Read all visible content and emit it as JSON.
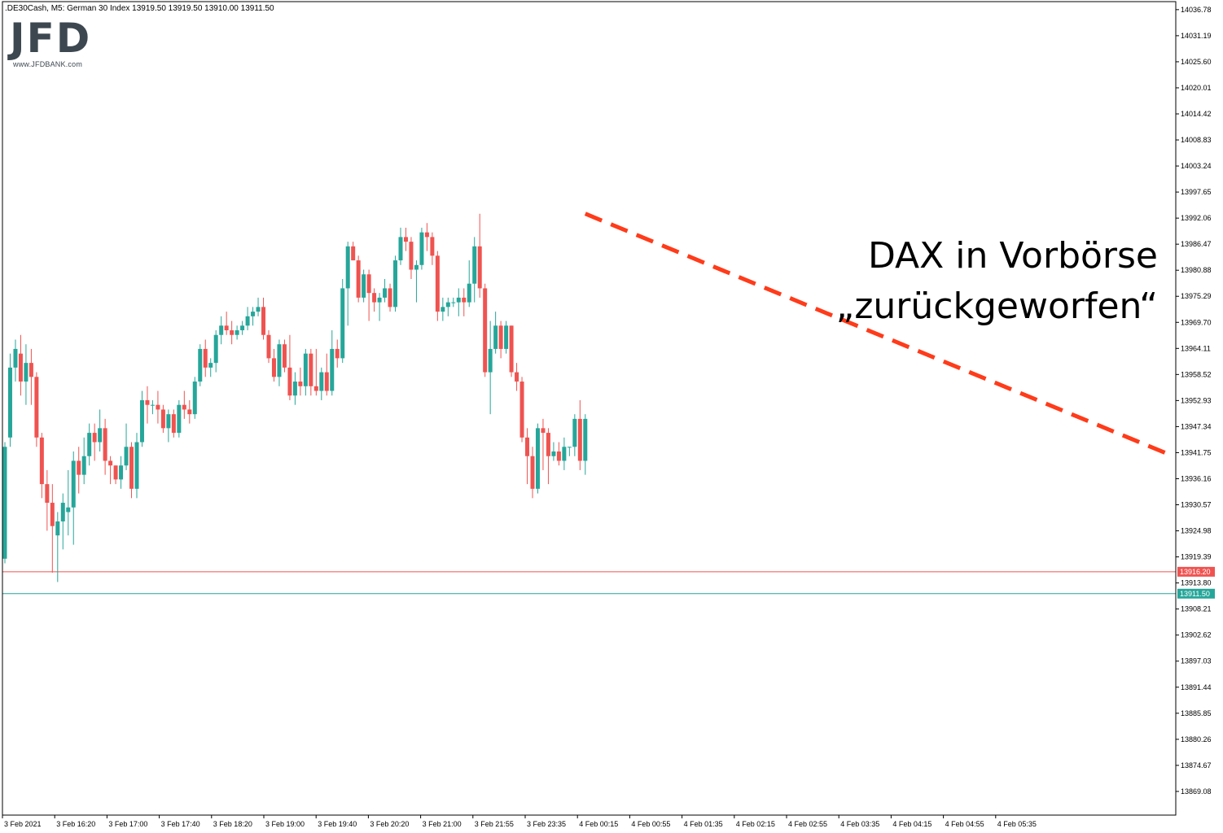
{
  "header": {
    "text": ".DE30Cash, M5:  German 30 Index  13919.50 13919.50 13910.00 13911.50"
  },
  "logo": {
    "mark": "JFD",
    "url": "www.JFDBANK.com"
  },
  "annotation": {
    "line1": "DAX  in Vorbörse",
    "line2": "„zurückgeworfen“"
  },
  "colors": {
    "bull": "#26a69a",
    "bear": "#ef5350",
    "trendline": "#ff3b1a",
    "bid_line": "#26a69a",
    "ask_line": "#ef5350"
  },
  "chart_data": {
    "type": "candlestick",
    "symbol": ".DE30Cash",
    "timeframe": "M5",
    "instrument": "German 30 Index",
    "ohlc_header": {
      "open": 13919.5,
      "high": 13919.5,
      "low": 13910.0,
      "close": 13911.5
    },
    "ylim": [
      13864.0,
      14038.5
    ],
    "y_ticks": [
      "14036.78",
      "14031.19",
      "14025.60",
      "14020.01",
      "14014.42",
      "14008.83",
      "14003.24",
      "13997.65",
      "13992.06",
      "13986.47",
      "13980.88",
      "13975.29",
      "13969.70",
      "13964.11",
      "13958.52",
      "13952.93",
      "13947.34",
      "13941.75",
      "13936.16",
      "13930.57",
      "13924.98",
      "13919.39",
      "13913.80",
      "13908.21",
      "13902.62",
      "13897.03",
      "13891.44",
      "13885.85",
      "13880.26",
      "13874.67",
      "13869.08"
    ],
    "x_ticks": [
      "3 Feb 2021",
      "3 Feb 16:20",
      "3 Feb 17:00",
      "3 Feb 17:40",
      "3 Feb 18:20",
      "3 Feb 19:00",
      "3 Feb 19:40",
      "3 Feb 20:20",
      "3 Feb 21:00",
      "3 Feb 21:55",
      "3 Feb 23:35",
      "4 Feb 00:15",
      "4 Feb 00:55",
      "4 Feb 01:35",
      "4 Feb 02:15",
      "4 Feb 02:55",
      "4 Feb 03:35",
      "4 Feb 04:15",
      "4 Feb 04:55",
      "4 Feb 05:35"
    ],
    "price_lines": [
      {
        "label": "13916.20",
        "value": 13916.2,
        "kind": "ask"
      },
      {
        "label": "13911.50",
        "value": 13911.5,
        "kind": "bid"
      }
    ],
    "trendline": {
      "from_bar": 110,
      "from_price": 13993.0,
      "to_bar": 228,
      "to_price": 13941.0,
      "style": "dashed"
    },
    "candles": [
      {
        "o": 13919,
        "h": 13944,
        "l": 13918,
        "c": 13943
      },
      {
        "o": 13945,
        "h": 13963,
        "l": 13943,
        "c": 13960
      },
      {
        "o": 13960,
        "h": 13966,
        "l": 13957,
        "c": 13964
      },
      {
        "o": 13963,
        "h": 13967,
        "l": 13954,
        "c": 13957
      },
      {
        "o": 13957,
        "h": 13965,
        "l": 13952,
        "c": 13961
      },
      {
        "o": 13961,
        "h": 13964,
        "l": 13952,
        "c": 13958
      },
      {
        "o": 13958,
        "h": 13959,
        "l": 13943,
        "c": 13945
      },
      {
        "o": 13945,
        "h": 13946,
        "l": 13932,
        "c": 13935
      },
      {
        "o": 13935,
        "h": 13938,
        "l": 13925,
        "c": 13931
      },
      {
        "o": 13931,
        "h": 13935,
        "l": 13916,
        "c": 13926
      },
      {
        "o": 13924,
        "h": 13929,
        "l": 13914,
        "c": 13927
      },
      {
        "o": 13927,
        "h": 13933,
        "l": 13921,
        "c": 13931
      },
      {
        "o": 13929,
        "h": 13938,
        "l": 13924,
        "c": 13930
      },
      {
        "o": 13930,
        "h": 13942,
        "l": 13922,
        "c": 13940
      },
      {
        "o": 13940,
        "h": 13943,
        "l": 13933,
        "c": 13937
      },
      {
        "o": 13937,
        "h": 13945,
        "l": 13935,
        "c": 13941
      },
      {
        "o": 13941,
        "h": 13948,
        "l": 13939,
        "c": 13946
      },
      {
        "o": 13946,
        "h": 13948,
        "l": 13940,
        "c": 13944
      },
      {
        "o": 13944,
        "h": 13951,
        "l": 13942,
        "c": 13947
      },
      {
        "o": 13947,
        "h": 13949,
        "l": 13937,
        "c": 13940
      },
      {
        "o": 13940,
        "h": 13941,
        "l": 13935,
        "c": 13939
      },
      {
        "o": 13939,
        "h": 13939,
        "l": 13935,
        "c": 13936
      },
      {
        "o": 13936,
        "h": 13941,
        "l": 13934,
        "c": 13939
      },
      {
        "o": 13939,
        "h": 13948,
        "l": 13938,
        "c": 13943
      },
      {
        "o": 13943,
        "h": 13944,
        "l": 13932,
        "c": 13934
      },
      {
        "o": 13934,
        "h": 13946,
        "l": 13932,
        "c": 13944
      },
      {
        "o": 13944,
        "h": 13955,
        "l": 13943,
        "c": 13953
      },
      {
        "o": 13953,
        "h": 13956,
        "l": 13948,
        "c": 13952
      },
      {
        "o": 13952,
        "h": 13953,
        "l": 13950,
        "c": 13952
      },
      {
        "o": 13952,
        "h": 13955,
        "l": 13948,
        "c": 13951
      },
      {
        "o": 13951,
        "h": 13952,
        "l": 13946,
        "c": 13947
      },
      {
        "o": 13947,
        "h": 13951,
        "l": 13944,
        "c": 13950
      },
      {
        "o": 13950,
        "h": 13951,
        "l": 13945,
        "c": 13946
      },
      {
        "o": 13946,
        "h": 13953,
        "l": 13945,
        "c": 13952
      },
      {
        "o": 13952,
        "h": 13955,
        "l": 13949,
        "c": 13951
      },
      {
        "o": 13951,
        "h": 13953,
        "l": 13948,
        "c": 13950
      },
      {
        "o": 13950,
        "h": 13958,
        "l": 13949,
        "c": 13957
      },
      {
        "o": 13957,
        "h": 13965,
        "l": 13956,
        "c": 13964
      },
      {
        "o": 13964,
        "h": 13966,
        "l": 13958,
        "c": 13960
      },
      {
        "o": 13960,
        "h": 13962,
        "l": 13958,
        "c": 13961
      },
      {
        "o": 13961,
        "h": 13968,
        "l": 13959,
        "c": 13967
      },
      {
        "o": 13967,
        "h": 13971,
        "l": 13965,
        "c": 13969
      },
      {
        "o": 13969,
        "h": 13972,
        "l": 13967,
        "c": 13968
      },
      {
        "o": 13968,
        "h": 13970,
        "l": 13965,
        "c": 13967
      },
      {
        "o": 13967,
        "h": 13969,
        "l": 13966,
        "c": 13968
      },
      {
        "o": 13968,
        "h": 13970,
        "l": 13967,
        "c": 13969
      },
      {
        "o": 13969,
        "h": 13973,
        "l": 13968,
        "c": 13971
      },
      {
        "o": 13971,
        "h": 13973,
        "l": 13969,
        "c": 13972
      },
      {
        "o": 13972,
        "h": 13975,
        "l": 13971,
        "c": 13973
      },
      {
        "o": 13973,
        "h": 13975,
        "l": 13966,
        "c": 13967
      },
      {
        "o": 13967,
        "h": 13968,
        "l": 13961,
        "c": 13962
      },
      {
        "o": 13962,
        "h": 13964,
        "l": 13957,
        "c": 13958
      },
      {
        "o": 13958,
        "h": 13966,
        "l": 13956,
        "c": 13965
      },
      {
        "o": 13965,
        "h": 13966,
        "l": 13959,
        "c": 13960
      },
      {
        "o": 13960,
        "h": 13967,
        "l": 13953,
        "c": 13954
      },
      {
        "o": 13954,
        "h": 13959,
        "l": 13952,
        "c": 13957
      },
      {
        "o": 13957,
        "h": 13960,
        "l": 13954,
        "c": 13956
      },
      {
        "o": 13956,
        "h": 13964,
        "l": 13954,
        "c": 13963
      },
      {
        "o": 13963,
        "h": 13964,
        "l": 13954,
        "c": 13956
      },
      {
        "o": 13956,
        "h": 13964,
        "l": 13954,
        "c": 13955
      },
      {
        "o": 13955,
        "h": 13960,
        "l": 13953,
        "c": 13959
      },
      {
        "o": 13959,
        "h": 13963,
        "l": 13954,
        "c": 13955
      },
      {
        "o": 13955,
        "h": 13968,
        "l": 13954,
        "c": 13964
      },
      {
        "o": 13964,
        "h": 13966,
        "l": 13960,
        "c": 13962
      },
      {
        "o": 13962,
        "h": 13979,
        "l": 13961,
        "c": 13977
      },
      {
        "o": 13977,
        "h": 13987,
        "l": 13969,
        "c": 13986
      },
      {
        "o": 13986,
        "h": 13987,
        "l": 13983,
        "c": 13983
      },
      {
        "o": 13983,
        "h": 13984,
        "l": 13974,
        "c": 13975
      },
      {
        "o": 13975,
        "h": 13981,
        "l": 13974,
        "c": 13980
      },
      {
        "o": 13980,
        "h": 13981,
        "l": 13970,
        "c": 13976
      },
      {
        "o": 13976,
        "h": 13977,
        "l": 13972,
        "c": 13974
      },
      {
        "o": 13974,
        "h": 13976,
        "l": 13970,
        "c": 13975
      },
      {
        "o": 13975,
        "h": 13979,
        "l": 13974,
        "c": 13977
      },
      {
        "o": 13977,
        "h": 13978,
        "l": 13972,
        "c": 13973
      },
      {
        "o": 13973,
        "h": 13984,
        "l": 13972,
        "c": 13983
      },
      {
        "o": 13983,
        "h": 13990,
        "l": 13982,
        "c": 13988
      },
      {
        "o": 13988,
        "h": 13990,
        "l": 13985,
        "c": 13987
      },
      {
        "o": 13987,
        "h": 13988,
        "l": 13979,
        "c": 13981
      },
      {
        "o": 13981,
        "h": 13983,
        "l": 13974,
        "c": 13982
      },
      {
        "o": 13982,
        "h": 13990,
        "l": 13981,
        "c": 13989
      },
      {
        "o": 13989,
        "h": 13991,
        "l": 13985,
        "c": 13988
      },
      {
        "o": 13988,
        "h": 13989,
        "l": 13982,
        "c": 13984
      },
      {
        "o": 13984,
        "h": 13985,
        "l": 13970,
        "c": 13972
      },
      {
        "o": 13972,
        "h": 13975,
        "l": 13970,
        "c": 13973
      },
      {
        "o": 13973,
        "h": 13975,
        "l": 13971,
        "c": 13974
      },
      {
        "o": 13974,
        "h": 13975,
        "l": 13973,
        "c": 13974
      },
      {
        "o": 13974,
        "h": 13977,
        "l": 13971,
        "c": 13975
      },
      {
        "o": 13975,
        "h": 13977,
        "l": 13971,
        "c": 13974
      },
      {
        "o": 13974,
        "h": 13983,
        "l": 13973,
        "c": 13978
      },
      {
        "o": 13978,
        "h": 13988,
        "l": 13974,
        "c": 13986
      },
      {
        "o": 13986,
        "h": 13993,
        "l": 13975,
        "c": 13977
      },
      {
        "o": 13977,
        "h": 13978,
        "l": 13958,
        "c": 13959
      },
      {
        "o": 13959,
        "h": 13970,
        "l": 13950,
        "c": 13964
      },
      {
        "o": 13964,
        "h": 13972,
        "l": 13963,
        "c": 13969
      },
      {
        "o": 13969,
        "h": 13970,
        "l": 13962,
        "c": 13964
      },
      {
        "o": 13964,
        "h": 13970,
        "l": 13963,
        "c": 13969
      },
      {
        "o": 13969,
        "h": 13969,
        "l": 13958,
        "c": 13959
      },
      {
        "o": 13959,
        "h": 13961,
        "l": 13955,
        "c": 13957
      },
      {
        "o": 13957,
        "h": 13958,
        "l": 13944,
        "c": 13945
      },
      {
        "o": 13945,
        "h": 13947,
        "l": 13935,
        "c": 13941
      },
      {
        "o": 13941,
        "h": 13943,
        "l": 13932,
        "c": 13934
      },
      {
        "o": 13934,
        "h": 13948,
        "l": 13933,
        "c": 13947
      },
      {
        "o": 13947,
        "h": 13949,
        "l": 13938,
        "c": 13946
      },
      {
        "o": 13946,
        "h": 13947,
        "l": 13935,
        "c": 13941
      },
      {
        "o": 13941,
        "h": 13944,
        "l": 13940,
        "c": 13942
      },
      {
        "o": 13942,
        "h": 13944,
        "l": 13939,
        "c": 13940
      },
      {
        "o": 13940,
        "h": 13945,
        "l": 13938,
        "c": 13943
      },
      {
        "o": 13943,
        "h": 13943,
        "l": 13941,
        "c": 13943
      },
      {
        "o": 13943,
        "h": 13950,
        "l": 13941,
        "c": 13949
      },
      {
        "o": 13949,
        "h": 13953,
        "l": 13938,
        "c": 13940
      },
      {
        "o": 13940,
        "h": 13950,
        "l": 13937,
        "c": 13949
      }
    ]
  }
}
